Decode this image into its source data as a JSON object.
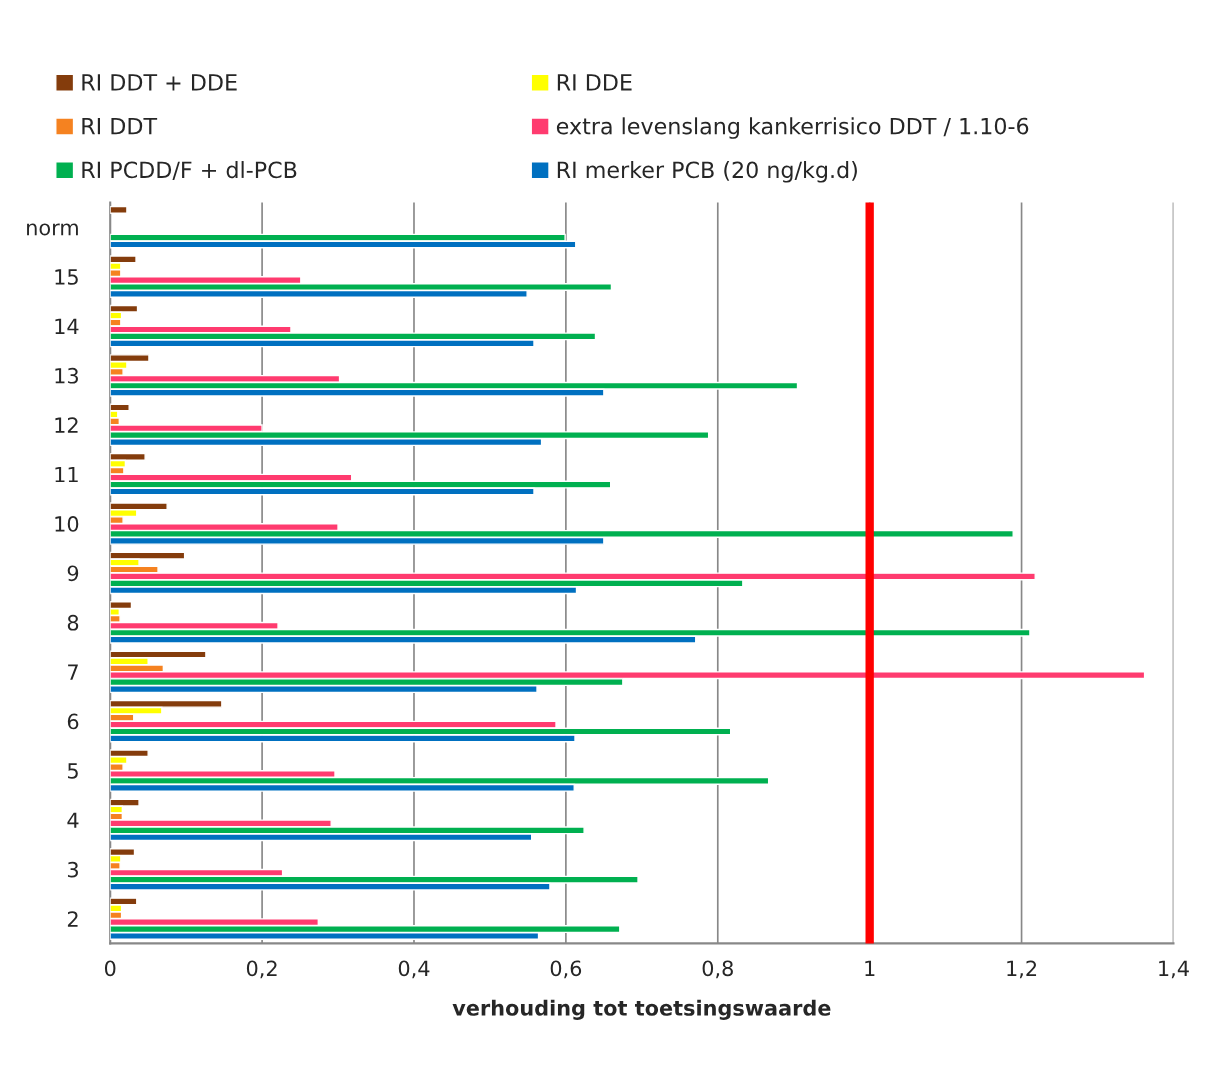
{
  "chart_data": {
    "type": "bar",
    "orientation": "horizontal",
    "categories": [
      "norm",
      "15",
      "14",
      "13",
      "12",
      "11",
      "10",
      "9",
      "8",
      "7",
      "6",
      "5",
      "4",
      "3",
      "2"
    ],
    "series": [
      {
        "name": "RI DDT + DDE",
        "color": "#843c0c",
        "values": [
          0.022,
          0.034,
          0.036,
          0.051,
          0.025,
          0.046,
          0.075,
          0.098,
          0.028,
          0.126,
          0.147,
          0.05,
          0.038,
          0.032,
          0.035
        ]
      },
      {
        "name": "RI DDE",
        "color": "#ffff00",
        "values": [
          null,
          0.014,
          0.015,
          0.022,
          0.01,
          0.02,
          0.035,
          0.038,
          0.012,
          0.05,
          0.068,
          0.022,
          0.016,
          0.014,
          0.015
        ]
      },
      {
        "name": "RI DDT",
        "color": "#f58220",
        "values": [
          null,
          0.014,
          0.014,
          0.017,
          0.012,
          0.018,
          0.017,
          0.063,
          0.013,
          0.07,
          0.031,
          0.017,
          0.016,
          0.013,
          0.015
        ]
      },
      {
        "name": "extra levenslang kankerrisico DDT / 1.10-6",
        "color": "#ff3b6f",
        "values": [
          null,
          0.251,
          0.238,
          0.302,
          0.2,
          0.318,
          0.3,
          1.218,
          0.221,
          1.362,
          0.587,
          0.296,
          0.291,
          0.227,
          0.274
        ]
      },
      {
        "name": "RI PCDD/F + dl-PCB",
        "color": "#00b050",
        "values": [
          0.599,
          0.66,
          0.639,
          0.905,
          0.788,
          0.659,
          1.189,
          0.833,
          1.211,
          0.675,
          0.817,
          0.867,
          0.624,
          0.695,
          0.671
        ]
      },
      {
        "name": "RI merker PCB (20 ng/kg.d)",
        "color": "#0070c0",
        "values": [
          0.613,
          0.549,
          0.558,
          0.65,
          0.568,
          0.558,
          0.65,
          0.614,
          0.771,
          0.562,
          0.612,
          0.611,
          0.555,
          0.579,
          0.564
        ]
      }
    ],
    "xlabel": "verhouding tot toetsingswaarde",
    "xlim": [
      0,
      1.4
    ],
    "xticks": [
      0,
      {
        "value": 0.2,
        "label": "0,2"
      },
      {
        "value": 0.4,
        "label": "0,4"
      },
      {
        "value": 0.6,
        "label": "0,6"
      },
      {
        "value": 0.8,
        "label": "0,8"
      },
      1,
      {
        "value": 1.2,
        "label": "1,2"
      },
      {
        "value": 1.4,
        "label": "1,4"
      }
    ],
    "grid": "x",
    "legend": "top",
    "ref_lines": [
      {
        "axis": "x",
        "value": 1,
        "color": "#ff0000"
      }
    ]
  }
}
